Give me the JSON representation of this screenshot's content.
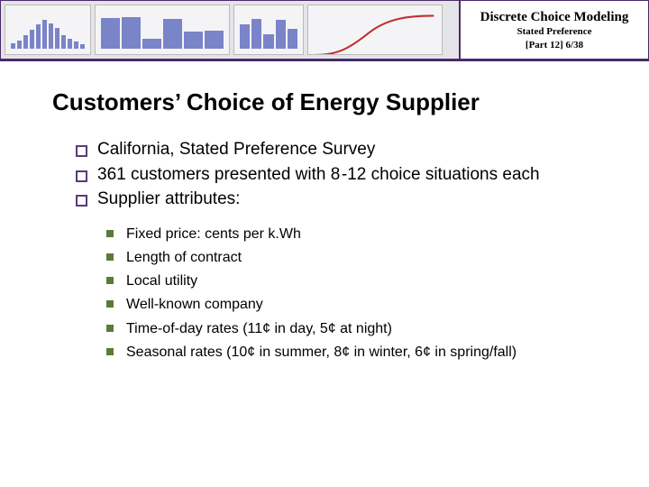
{
  "header": {
    "title": "Discrete Choice Modeling",
    "subtitle": "Stated Preference",
    "part": "[Part  12]   6/38",
    "thumbs": [
      {
        "type": "bar",
        "widthPx": 96,
        "heights": [
          15,
          25,
          40,
          55,
          70,
          85,
          75,
          60,
          40,
          30,
          20,
          12
        ]
      },
      {
        "type": "bar",
        "widthPx": 150,
        "heights": [
          90,
          92,
          30,
          88,
          50,
          52
        ]
      },
      {
        "type": "bar",
        "widthPx": 78,
        "heights": [
          70,
          88,
          42,
          85,
          58
        ]
      },
      {
        "type": "curve",
        "widthPx": 150,
        "color": "#c03030"
      }
    ],
    "barColor": "#7a84c8",
    "thumbBg": "#f4f4f6"
  },
  "slide": {
    "title": "Customers’ Choice of Energy Supplier",
    "bullets": [
      "California, Stated Preference Survey",
      "361 customers presented with 8 -12 choice situations each",
      "Supplier attributes:"
    ],
    "subBullets": [
      "Fixed price: cents per k.Wh",
      "Length of contract",
      "Local utility",
      "Well-known company",
      "Time-of-day rates (11¢ in day, 5¢ at night)",
      "Seasonal rates (10¢ in summer, 8¢ in winter, 6¢ in spring/fall)"
    ]
  },
  "colors": {
    "accent": "#4a2a6a",
    "bulletOutline": "#5a3a7a",
    "subBullet": "#5a7a3a"
  }
}
